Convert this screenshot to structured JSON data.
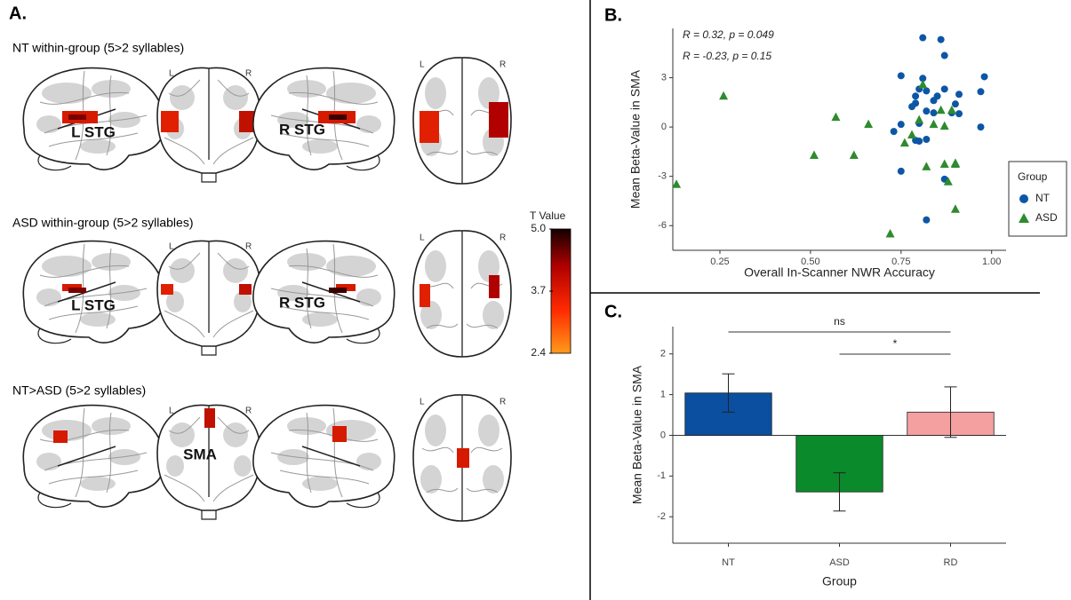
{
  "panel_a": {
    "label": "A.",
    "rows": [
      {
        "title": "NT within-group (5>2 syllables)",
        "left_label": "L STG",
        "right_label": "R STG",
        "coronal_l": "L",
        "coronal_r": "R",
        "axial_l": "L",
        "axial_r": "R"
      },
      {
        "title": "ASD within-group (5>2 syllables)",
        "left_label": "L STG",
        "right_label": "R STG",
        "coronal_l": "L",
        "coronal_r": "R",
        "axial_l": "L",
        "axial_r": "R"
      },
      {
        "title": "NT>ASD (5>2 syllables)",
        "coronal_label": "SMA",
        "coronal_l": "L",
        "coronal_r": "R",
        "axial_l": "L",
        "axial_r": "R"
      }
    ],
    "colorbar": {
      "title": "T Value",
      "lim": [
        2.4,
        5.0
      ],
      "ticks": [
        {
          "value": 5,
          "label": "5.0"
        },
        3.7,
        2.4
      ]
    }
  },
  "chart_data": [
    {
      "type": "scatter",
      "label": "B.",
      "x_label": "Overall In-Scanner NWR Accuracy",
      "y_label": "Mean Beta-Value in SMA",
      "xlim": [
        0.12,
        1.04
      ],
      "ylim": [
        -7.5,
        6
      ],
      "xticks": [
        0.25,
        {
          "value": 0.5,
          "label": "0.50"
        },
        0.75,
        {
          "value": 1,
          "label": "1.00"
        }
      ],
      "yticks": [
        -6,
        -3,
        0,
        3
      ],
      "legend_title": "Group",
      "legend_position": "right",
      "annotations": [
        {
          "text": "R = 0.32, p = 0.049",
          "color": "#1f5fa8"
        },
        {
          "text": "R = -0.23, p = 0.15",
          "color": "#2e8b2e"
        }
      ],
      "series": [
        {
          "name": "NT",
          "color": "#0d56a6",
          "marker": "circle",
          "x": [
            0.81,
            0.86,
            0.87,
            0.75,
            0.81,
            0.98,
            0.8,
            0.82,
            0.87,
            0.79,
            0.85,
            0.91,
            0.97,
            0.79,
            0.84,
            0.9,
            0.78,
            0.82,
            0.84,
            0.89,
            0.91,
            0.75,
            0.8,
            0.97,
            0.73,
            0.82,
            0.79,
            0.8,
            0.87,
            0.75,
            0.82
          ],
          "y": [
            5.43,
            5.32,
            4.35,
            3.12,
            2.96,
            3.06,
            2.31,
            2.2,
            2.31,
            1.88,
            1.88,
            1.99,
            2.15,
            1.45,
            1.61,
            1.4,
            1.24,
            0.97,
            0.86,
            0.86,
            0.81,
            0.16,
            0.22,
            0,
            -0.27,
            -0.75,
            -0.81,
            -0.86,
            -3.17,
            -2.69,
            -5.65
          ]
        },
        {
          "name": "ASD",
          "color": "#2e8b2e",
          "marker": "triangle",
          "x": [
            0.26,
            0.13,
            0.51,
            0.57,
            0.62,
            0.66,
            0.72,
            0.76,
            0.78,
            0.8,
            0.81,
            0.82,
            0.84,
            0.86,
            0.87,
            0.87,
            0.88,
            0.89,
            0.9,
            0.9,
            0.9
          ],
          "y": [
            1.88,
            -3.49,
            -1.72,
            0.59,
            -1.72,
            0.16,
            -6.5,
            -0.97,
            -0.48,
            0.43,
            2.58,
            -2.42,
            0.16,
            1.02,
            0.05,
            -2.26,
            -3.33,
            1.02,
            -2.26,
            -2.2,
            -5.0
          ]
        }
      ]
    },
    {
      "type": "bar",
      "label": "C.",
      "x_label": "Group",
      "y_label": "Mean Beta-Value in SMA",
      "categories": [
        "NT",
        "ASD",
        "RD"
      ],
      "values": [
        1.04,
        -1.39,
        0.57
      ],
      "errors": [
        0.47,
        0.47,
        0.62
      ],
      "colors": [
        "#0a4fa0",
        "#0a8a2a",
        "#f4a0a0"
      ],
      "ylim": [
        -2.65,
        2.67
      ],
      "yticks": [
        -2,
        -1,
        0,
        1,
        2
      ],
      "annotations": [
        "ns",
        "*"
      ]
    }
  ]
}
